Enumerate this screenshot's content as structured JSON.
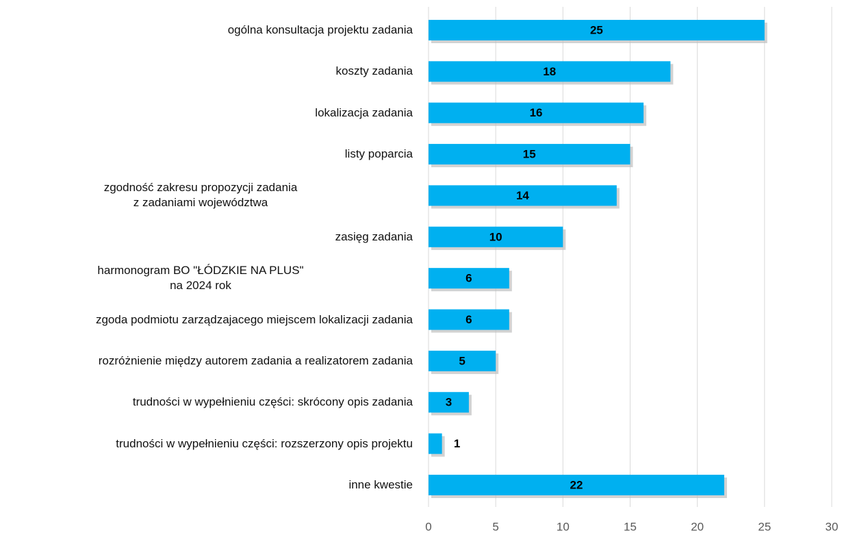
{
  "chart_data": {
    "type": "bar",
    "orientation": "horizontal",
    "categories": [
      "ogólna konsultacja projektu zadania",
      "koszty zadania",
      "lokalizacja zadania",
      "listy poparcia",
      "zgodność  zakresu propozycji zadania\nz zadaniami województwa",
      "zasięg zadania",
      "harmonogram BO \"ŁÓDZKIE NA PLUS\"\nna 2024 rok",
      "zgoda podmiotu zarządzajacego miejscem lokalizacji zadania",
      "rozróżnienie między autorem zadania a realizatorem zadania",
      "trudności w wypełnieniu części: skrócony opis zadania",
      "trudności w wypełnieniu części:  rozszerzony opis projektu",
      "inne kwestie"
    ],
    "values": [
      25,
      18,
      16,
      15,
      14,
      10,
      6,
      6,
      5,
      3,
      1,
      22
    ],
    "color": "#00b0f0",
    "xlim": [
      0,
      30
    ],
    "xticks": [
      0,
      5,
      10,
      15,
      20,
      25,
      30
    ],
    "grid": true
  }
}
